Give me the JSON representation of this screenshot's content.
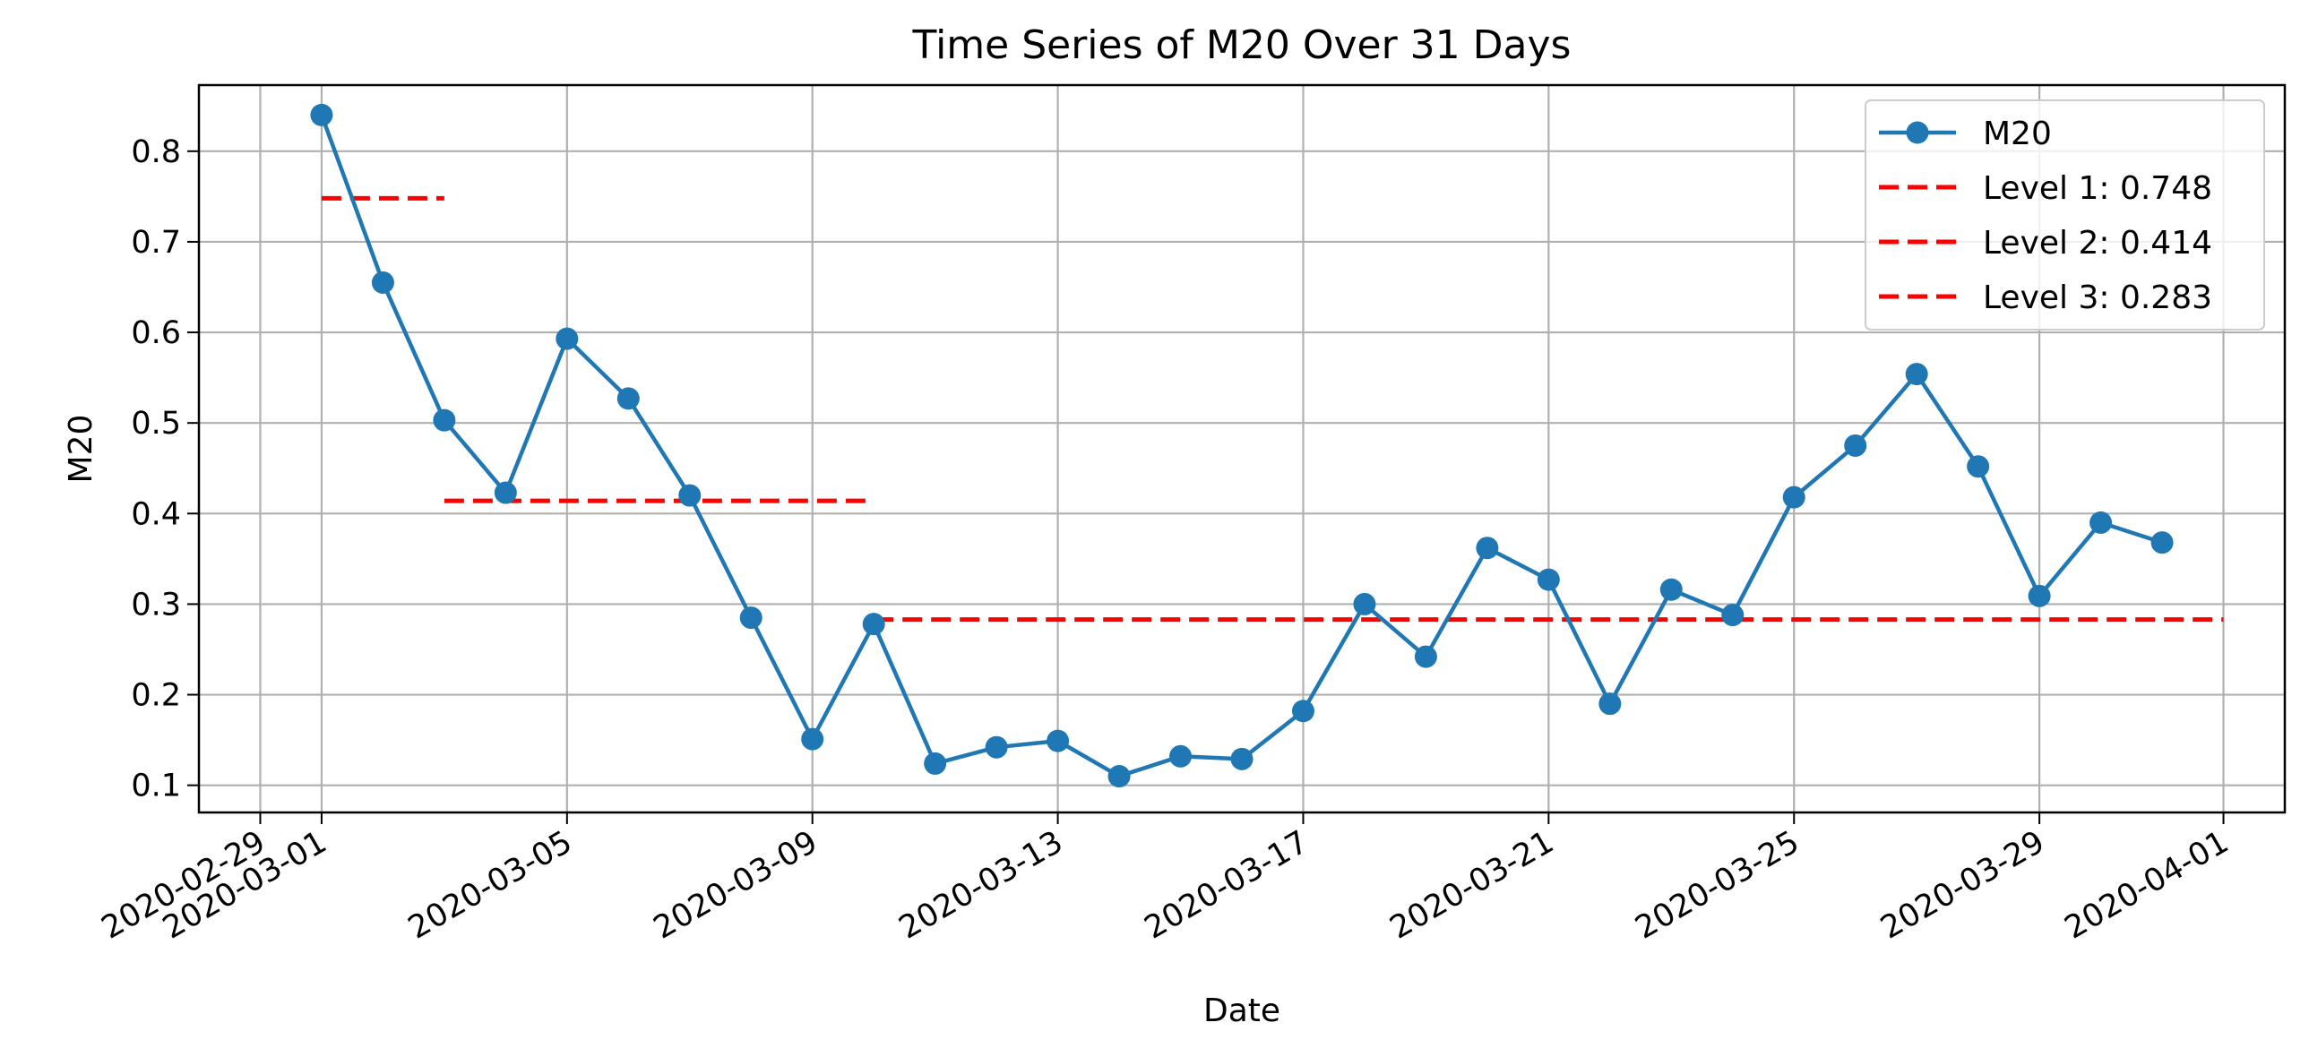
{
  "chart_data": {
    "type": "line",
    "title": "Time Series of M20 Over 31 Days",
    "xlabel": "Date",
    "ylabel": "M20",
    "x": [
      "2020-03-01",
      "2020-03-02",
      "2020-03-03",
      "2020-03-04",
      "2020-03-05",
      "2020-03-06",
      "2020-03-07",
      "2020-03-08",
      "2020-03-09",
      "2020-03-10",
      "2020-03-11",
      "2020-03-12",
      "2020-03-13",
      "2020-03-14",
      "2020-03-15",
      "2020-03-16",
      "2020-03-17",
      "2020-03-18",
      "2020-03-19",
      "2020-03-20",
      "2020-03-21",
      "2020-03-22",
      "2020-03-23",
      "2020-03-24",
      "2020-03-25",
      "2020-03-26",
      "2020-03-27",
      "2020-03-28",
      "2020-03-29",
      "2020-03-30",
      "2020-03-31"
    ],
    "series": [
      {
        "name": "M20",
        "color": "#1f77b4",
        "marker": "circle",
        "values": [
          0.84,
          0.655,
          0.503,
          0.423,
          0.593,
          0.527,
          0.42,
          0.285,
          0.151,
          0.278,
          0.124,
          0.142,
          0.149,
          0.11,
          0.132,
          0.129,
          0.182,
          0.3,
          0.242,
          0.362,
          0.327,
          0.19,
          0.316,
          0.288,
          0.418,
          0.475,
          0.554,
          0.452,
          0.309,
          0.39,
          0.368
        ]
      }
    ],
    "levels": [
      {
        "name": "Level 1: 0.748",
        "value": 0.748,
        "x_start": "2020-03-01",
        "x_end": "2020-03-03",
        "color": "#ff0000",
        "style": "dashed"
      },
      {
        "name": "Level 2: 0.414",
        "value": 0.414,
        "x_start": "2020-03-03",
        "x_end": "2020-03-10",
        "color": "#ff0000",
        "style": "dashed"
      },
      {
        "name": "Level 3: 0.283",
        "value": 0.283,
        "x_start": "2020-03-10",
        "x_end": "2020-04-01",
        "color": "#ff0000",
        "style": "dashed"
      }
    ],
    "xlim": [
      "2020-02-28",
      "2020-04-02"
    ],
    "ylim": [
      0.07,
      0.873
    ],
    "xticks": [
      "2020-02-29",
      "2020-03-01",
      "2020-03-05",
      "2020-03-09",
      "2020-03-13",
      "2020-03-17",
      "2020-03-21",
      "2020-03-25",
      "2020-03-29",
      "2020-04-01"
    ],
    "yticks": [
      0.1,
      0.2,
      0.3,
      0.4,
      0.5,
      0.6,
      0.7,
      0.8
    ],
    "ytick_labels": [
      "0.1",
      "0.2",
      "0.3",
      "0.4",
      "0.5",
      "0.6",
      "0.7",
      "0.8"
    ],
    "grid": true,
    "legend_position": "top-right"
  }
}
